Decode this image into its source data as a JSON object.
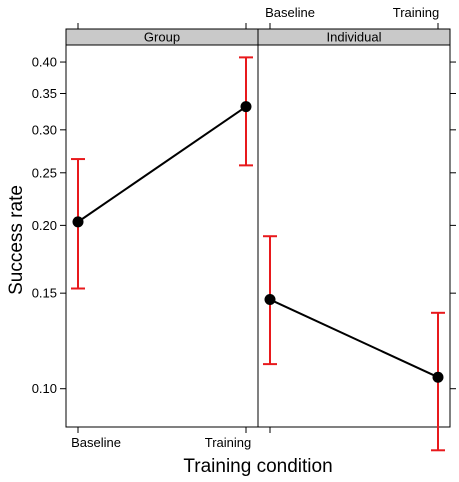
{
  "chart_data": {
    "type": "line",
    "xlabel": "Training condition",
    "ylabel": "Success rate",
    "y_scale": "log",
    "ylim": [
      0.085,
      0.43
    ],
    "y_ticks": [
      0.1,
      0.15,
      0.2,
      0.25,
      0.3,
      0.35,
      0.4
    ],
    "y_tick_labels": [
      "0.10",
      "0.15",
      "0.20",
      "0.25",
      "0.30",
      "0.35",
      "0.40"
    ],
    "categories": [
      "Baseline",
      "Training"
    ],
    "panels": [
      {
        "name": "Group",
        "points": [
          {
            "x": "Baseline",
            "y": 0.203,
            "lower": 0.153,
            "upper": 0.265
          },
          {
            "x": "Training",
            "y": 0.331,
            "lower": 0.258,
            "upper": 0.408
          }
        ]
      },
      {
        "name": "Individual",
        "points": [
          {
            "x": "Baseline",
            "y": 0.146,
            "lower": 0.111,
            "upper": 0.191
          },
          {
            "x": "Training",
            "y": 0.105,
            "lower": 0.077,
            "upper": 0.138
          }
        ]
      }
    ],
    "line_color": "#000000",
    "point_color": "#000000",
    "errorbar_color": "#e8191c",
    "strip_color": "#c9c9c9",
    "grid": false,
    "legend": "none"
  }
}
